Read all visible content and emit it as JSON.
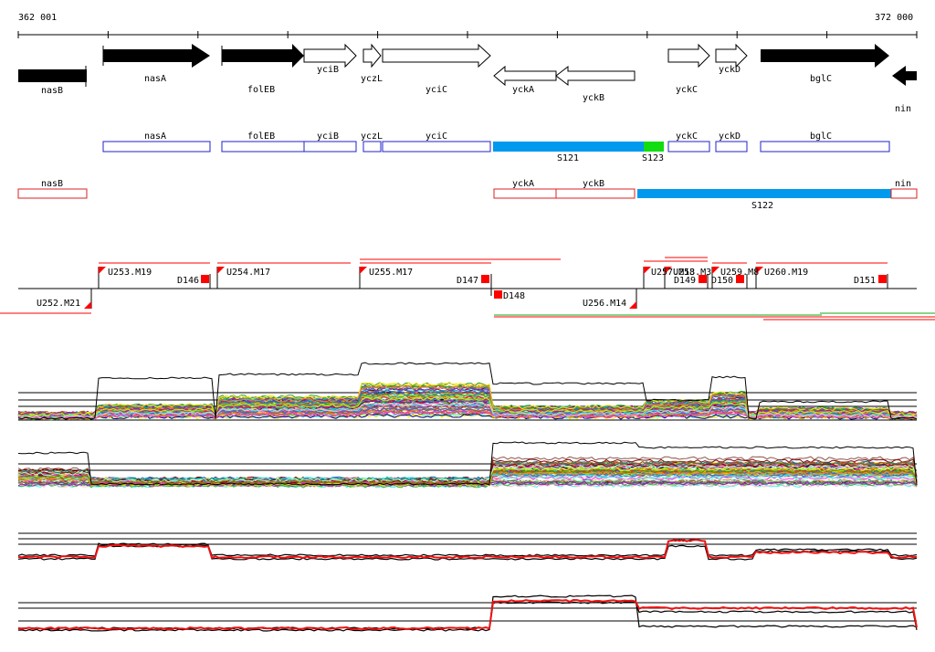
{
  "coords": {
    "start": "362 001",
    "end": "372 000"
  },
  "colors": {
    "blue_box": "#2222cc",
    "red_box": "#dd2222",
    "segment_cyan": "#0099ee",
    "segment_green": "#11dd11",
    "marker_red": "#ff0000"
  },
  "genes": [
    {
      "name": "nasB",
      "strand": "-",
      "filled": true
    },
    {
      "name": "nasA",
      "strand": "+",
      "filled": true
    },
    {
      "name": "folEB",
      "strand": "+",
      "filled": true
    },
    {
      "name": "yciB",
      "strand": "+",
      "filled": false
    },
    {
      "name": "yczL",
      "strand": "+",
      "filled": false
    },
    {
      "name": "yciC",
      "strand": "+",
      "filled": false
    },
    {
      "name": "yckA",
      "strand": "-",
      "filled": false
    },
    {
      "name": "yckB",
      "strand": "-",
      "filled": false
    },
    {
      "name": "yckC",
      "strand": "+",
      "filled": false
    },
    {
      "name": "yckD",
      "strand": "+",
      "filled": false
    },
    {
      "name": "bglC",
      "strand": "+",
      "filled": true
    },
    {
      "name": "nin",
      "strand": "-",
      "filled": true
    }
  ],
  "plus_track": [
    "nasA",
    "folEB",
    "yciB",
    "yczL",
    "yciC",
    "S121",
    "S123",
    "yckC",
    "yckD",
    "bglC"
  ],
  "minus_track": [
    "nasB",
    "yckA",
    "yckB",
    "S122",
    "nin"
  ],
  "upstream_labels": [
    "U252.M21",
    "U253.M19",
    "U254.M17",
    "U255.M17",
    "U256.M14",
    "U257.M13",
    "U258.M3",
    "U259.M8",
    "U260.M19"
  ],
  "downstream_labels": [
    "D146",
    "D147",
    "D148",
    "D149",
    "D150",
    "D151"
  ]
}
